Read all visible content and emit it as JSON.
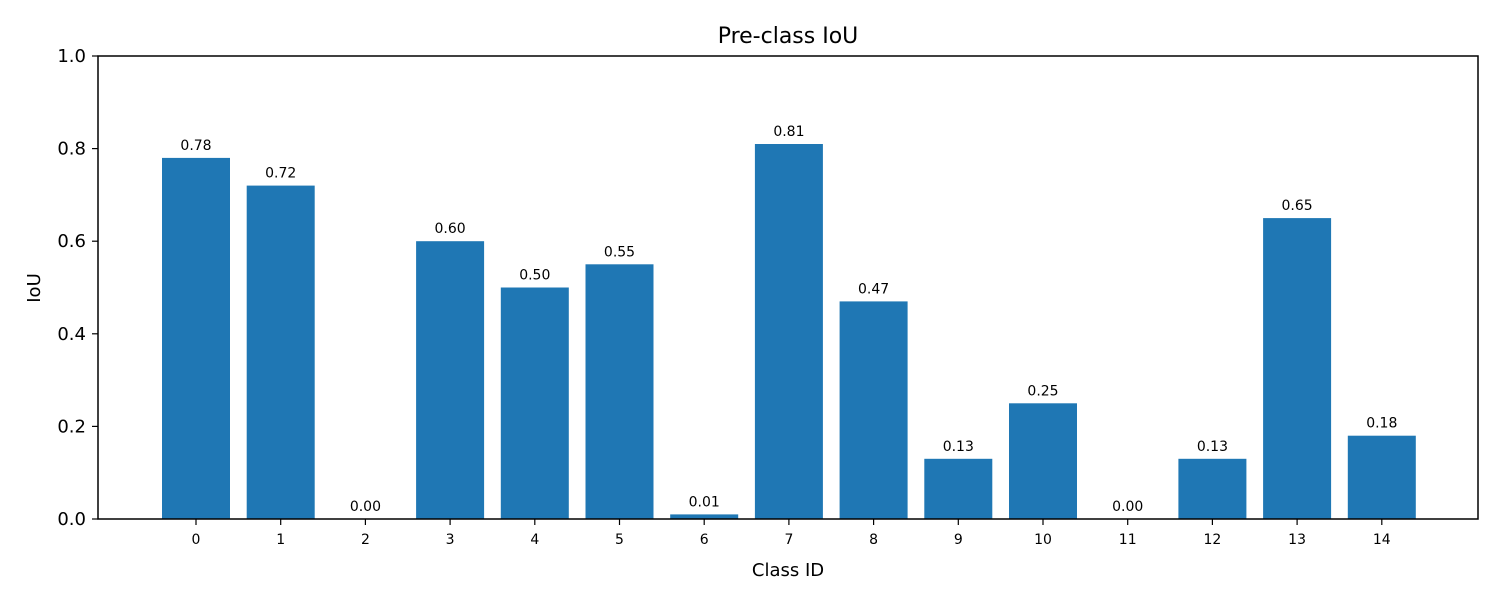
{
  "chart_data": {
    "type": "bar",
    "title": "Pre-class IoU",
    "xlabel": "Class ID",
    "ylabel": "IoU",
    "categories": [
      "0",
      "1",
      "2",
      "3",
      "4",
      "5",
      "6",
      "7",
      "8",
      "9",
      "10",
      "11",
      "12",
      "13",
      "14"
    ],
    "values": [
      0.78,
      0.72,
      0.0,
      0.6,
      0.5,
      0.55,
      0.01,
      0.81,
      0.47,
      0.13,
      0.25,
      0.0,
      0.13,
      0.65,
      0.18
    ],
    "value_labels": [
      "0.78",
      "0.72",
      "0.00",
      "0.60",
      "0.50",
      "0.55",
      "0.01",
      "0.81",
      "0.47",
      "0.13",
      "0.25",
      "0.00",
      "0.13",
      "0.65",
      "0.18"
    ],
    "ylim": [
      0,
      1.0
    ],
    "yticks": [
      "0.0",
      "0.2",
      "0.4",
      "0.6",
      "0.8",
      "1.0"
    ],
    "bar_color": "#1f77b4",
    "grid": false,
    "legend": "none"
  }
}
